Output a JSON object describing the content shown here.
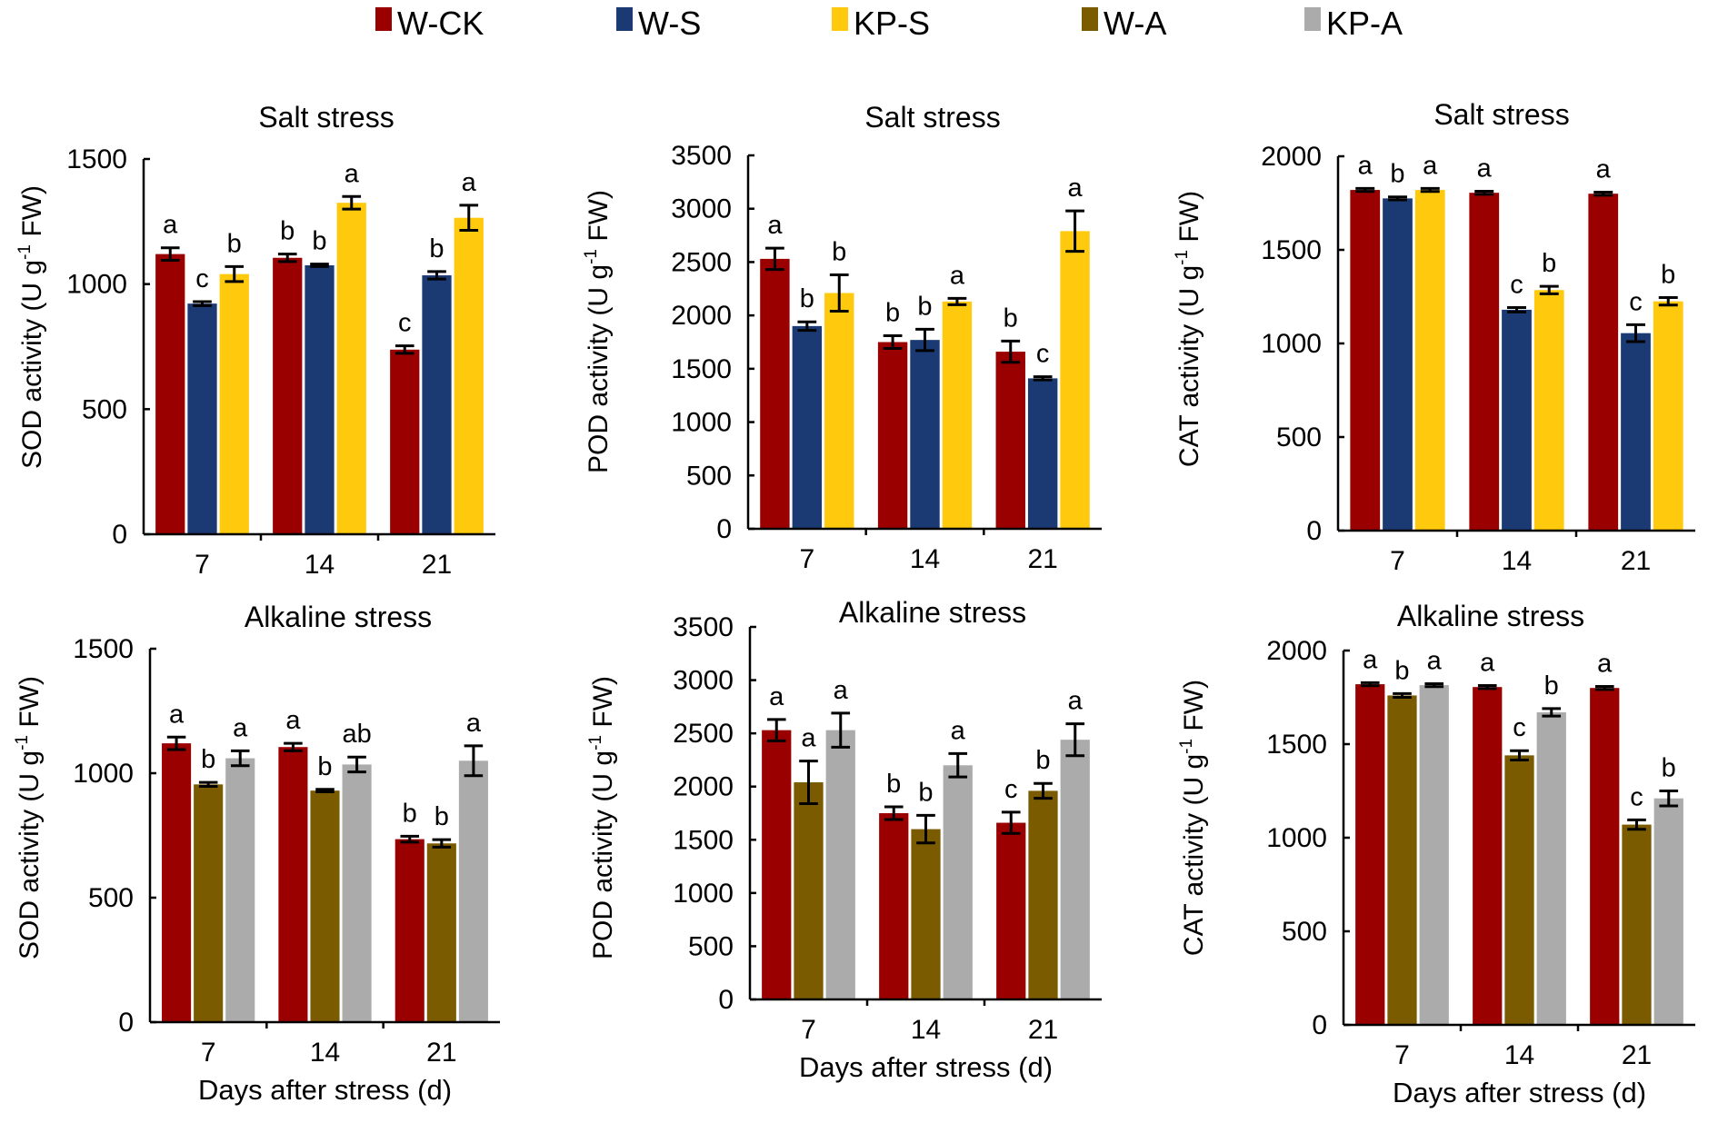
{
  "legend": [
    {
      "name": "W-CK",
      "color": "#9B0000"
    },
    {
      "name": "W-S",
      "color": "#1B3A73"
    },
    {
      "name": "KP-S",
      "color": "#FFC90E"
    },
    {
      "name": "W-A",
      "color": "#7A5B00"
    },
    {
      "name": "KP-A",
      "color": "#ABABAB"
    }
  ],
  "chart_data": [
    {
      "type": "bar",
      "title": "Salt stress",
      "ylabel": "SOD activity (U g-1 FW)",
      "xlabel": "",
      "categories": [
        "7",
        "14",
        "21"
      ],
      "ylim": [
        0,
        1500
      ],
      "yticks": [
        0,
        500,
        1000,
        1500
      ],
      "series": [
        {
          "name": "W-CK",
          "color": "#9B0000",
          "values": [
            1120,
            1105,
            738
          ],
          "errors": [
            25,
            15,
            15
          ],
          "letters": [
            "a",
            "b",
            "c"
          ]
        },
        {
          "name": "W-S",
          "color": "#1B3A73",
          "values": [
            922,
            1075,
            1035
          ],
          "errors": [
            8,
            5,
            15
          ],
          "letters": [
            "c",
            "b",
            "b"
          ]
        },
        {
          "name": "KP-S",
          "color": "#FFC90E",
          "values": [
            1040,
            1325,
            1265
          ],
          "errors": [
            30,
            25,
            50
          ],
          "letters": [
            "b",
            "a",
            "a"
          ]
        }
      ]
    },
    {
      "type": "bar",
      "title": "Salt stress",
      "ylabel": "POD activity (U g-1 FW)",
      "xlabel": "",
      "categories": [
        "7",
        "14",
        "21"
      ],
      "ylim": [
        0,
        3500
      ],
      "yticks": [
        0,
        500,
        1000,
        1500,
        2000,
        2500,
        3000,
        3500
      ],
      "series": [
        {
          "name": "W-CK",
          "color": "#9B0000",
          "values": [
            2530,
            1750,
            1660
          ],
          "errors": [
            100,
            60,
            100
          ],
          "letters": [
            "a",
            "b",
            "b"
          ]
        },
        {
          "name": "W-S",
          "color": "#1B3A73",
          "values": [
            1900,
            1770,
            1410
          ],
          "errors": [
            40,
            100,
            15
          ],
          "letters": [
            "b",
            "b",
            "c"
          ]
        },
        {
          "name": "KP-S",
          "color": "#FFC90E",
          "values": [
            2210,
            2130,
            2790
          ],
          "errors": [
            170,
            30,
            190
          ],
          "letters": [
            "b",
            "a",
            "a"
          ]
        }
      ]
    },
    {
      "type": "bar",
      "title": "Salt stress",
      "ylabel": "CAT activity (U g-1 FW)",
      "xlabel": "",
      "categories": [
        "7",
        "14",
        "21"
      ],
      "ylim": [
        0,
        2000
      ],
      "yticks": [
        0,
        500,
        1000,
        1500,
        2000
      ],
      "series": [
        {
          "name": "W-CK",
          "color": "#9B0000",
          "values": [
            1820,
            1805,
            1800
          ],
          "errors": [
            8,
            8,
            8
          ],
          "letters": [
            "a",
            "a",
            "a"
          ]
        },
        {
          "name": "W-S",
          "color": "#1B3A73",
          "values": [
            1775,
            1180,
            1055
          ],
          "errors": [
            8,
            12,
            45
          ],
          "letters": [
            "b",
            "c",
            "c"
          ]
        },
        {
          "name": "KP-S",
          "color": "#FFC90E",
          "values": [
            1820,
            1285,
            1225
          ],
          "errors": [
            8,
            20,
            20
          ],
          "letters": [
            "a",
            "b",
            "b"
          ]
        }
      ]
    },
    {
      "type": "bar",
      "title": "Alkaline stress",
      "ylabel": "SOD activity (U g-1 FW)",
      "xlabel": "Days after stress (d)",
      "categories": [
        "7",
        "14",
        "21"
      ],
      "ylim": [
        0,
        1500
      ],
      "yticks": [
        0,
        500,
        1000,
        1500
      ],
      "series": [
        {
          "name": "W-CK",
          "color": "#9B0000",
          "values": [
            1120,
            1105,
            735
          ],
          "errors": [
            25,
            15,
            12
          ],
          "letters": [
            "a",
            "a",
            "b"
          ]
        },
        {
          "name": "W-A",
          "color": "#7A5B00",
          "values": [
            955,
            930,
            718
          ],
          "errors": [
            8,
            5,
            15
          ],
          "letters": [
            "b",
            "b",
            "b"
          ]
        },
        {
          "name": "KP-A",
          "color": "#ABABAB",
          "values": [
            1060,
            1035,
            1050
          ],
          "errors": [
            30,
            30,
            60
          ],
          "letters": [
            "a",
            "ab",
            "a"
          ]
        }
      ]
    },
    {
      "type": "bar",
      "title": "Alkaline stress",
      "ylabel": "POD activity (U g-1 FW)",
      "xlabel": "Days after stress (d)",
      "categories": [
        "7",
        "14",
        "21"
      ],
      "ylim": [
        0,
        3500
      ],
      "yticks": [
        0,
        500,
        1000,
        1500,
        2000,
        2500,
        3000,
        3500
      ],
      "series": [
        {
          "name": "W-CK",
          "color": "#9B0000",
          "values": [
            2530,
            1750,
            1660
          ],
          "errors": [
            100,
            60,
            100
          ],
          "letters": [
            "a",
            "b",
            "c"
          ]
        },
        {
          "name": "W-A",
          "color": "#7A5B00",
          "values": [
            2040,
            1600,
            1960
          ],
          "errors": [
            200,
            130,
            70
          ],
          "letters": [
            "a",
            "b",
            "b"
          ]
        },
        {
          "name": "KP-A",
          "color": "#ABABAB",
          "values": [
            2530,
            2200,
            2440
          ],
          "errors": [
            160,
            110,
            150
          ],
          "letters": [
            "a",
            "a",
            "a"
          ]
        }
      ]
    },
    {
      "type": "bar",
      "title": "Alkaline stress",
      "ylabel": "CAT activity (U g-1 FW)",
      "xlabel": "Days after stress (d)",
      "categories": [
        "7",
        "14",
        "21"
      ],
      "ylim": [
        0,
        2000
      ],
      "yticks": [
        0,
        500,
        1000,
        1500,
        2000
      ],
      "series": [
        {
          "name": "W-CK",
          "color": "#9B0000",
          "values": [
            1820,
            1805,
            1800
          ],
          "errors": [
            8,
            8,
            8
          ],
          "letters": [
            "a",
            "a",
            "a"
          ]
        },
        {
          "name": "W-A",
          "color": "#7A5B00",
          "values": [
            1760,
            1440,
            1070
          ],
          "errors": [
            10,
            25,
            25
          ],
          "letters": [
            "b",
            "c",
            "c"
          ]
        },
        {
          "name": "KP-A",
          "color": "#ABABAB",
          "values": [
            1815,
            1670,
            1210
          ],
          "errors": [
            8,
            20,
            40
          ],
          "letters": [
            "a",
            "b",
            "b"
          ]
        }
      ]
    }
  ]
}
